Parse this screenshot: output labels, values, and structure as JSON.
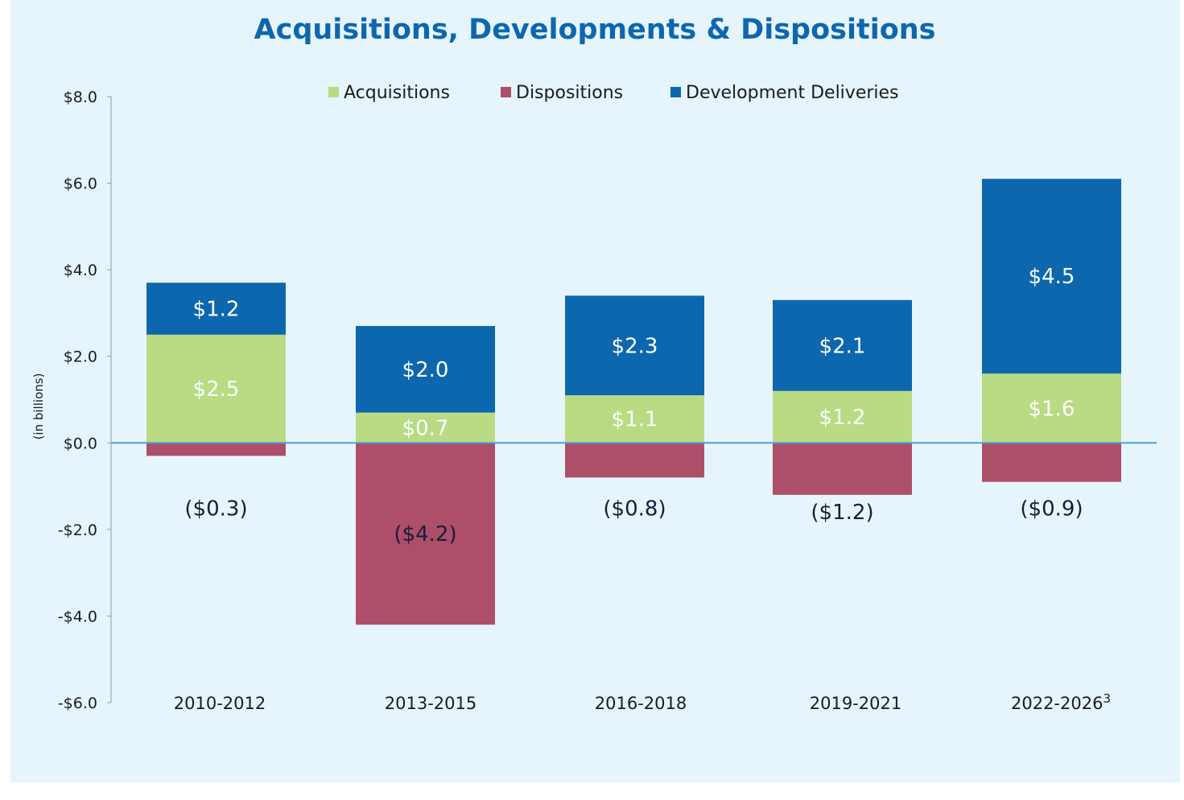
{
  "chart_data": {
    "type": "bar",
    "stacked": true,
    "title": "Acquisitions, Developments & Dispositions",
    "ylabel": "(in billions)",
    "ylim": [
      -6.0,
      8.0
    ],
    "yticks": [
      8.0,
      6.0,
      4.0,
      2.0,
      0.0,
      -2.0,
      -4.0,
      -6.0
    ],
    "ytick_labels": [
      "$8.0",
      "$6.0",
      "$4.0",
      "$2.0",
      "$0.0",
      "-$2.0",
      "-$4.0",
      "-$6.0"
    ],
    "categories": [
      "2010-2012",
      "2013-2015",
      "2016-2018",
      "2019-2021",
      "2022-2026"
    ],
    "category_superscripts": [
      "",
      "",
      "",
      "",
      "3"
    ],
    "legend_position": "top-center",
    "grid": false,
    "series": [
      {
        "name": "Acquisitions",
        "color": "#b8db84",
        "values": [
          2.5,
          0.7,
          1.1,
          1.2,
          1.6
        ],
        "labels": [
          "$2.5",
          "$0.7",
          "$1.1",
          "$1.2",
          "$1.6"
        ]
      },
      {
        "name": "Dispositions",
        "color": "#ad4f69",
        "values": [
          -0.3,
          -4.2,
          -0.8,
          -1.2,
          -0.9
        ],
        "labels": [
          "($0.3)",
          "($4.2)",
          "($0.8)",
          "($1.2)",
          "($0.9)"
        ]
      },
      {
        "name": "Development Deliveries",
        "color": "#0d67ae",
        "values": [
          1.2,
          2.0,
          2.3,
          2.1,
          4.5
        ],
        "labels": [
          "$1.2",
          "$2.0",
          "$2.3",
          "$2.1",
          "$4.5"
        ]
      }
    ],
    "colors": {
      "background": "#e6f5fc",
      "zero_line": "#4a9fd8",
      "axis": "#8a9aa6",
      "title": "#0d67ae"
    }
  }
}
